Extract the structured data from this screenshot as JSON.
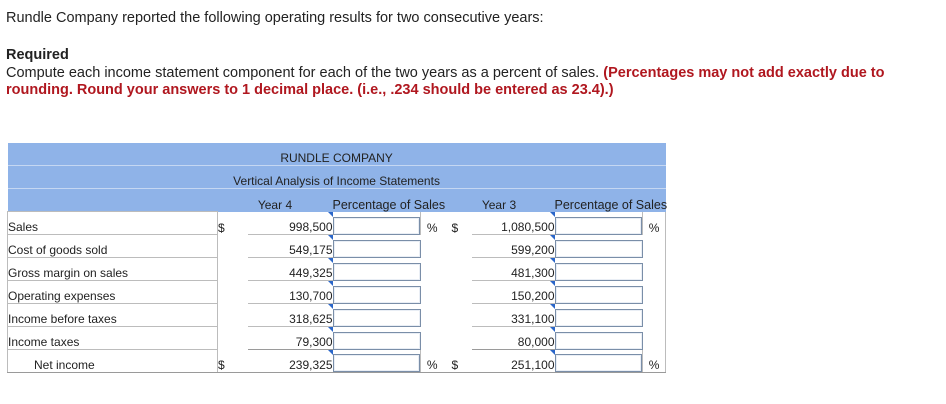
{
  "intro": "Rundle Company reported the following operating results for two consecutive years:",
  "required": {
    "heading": "Required",
    "text_plain": "Compute each income statement component for each of the two years as a percent of sales.",
    "text_emphasis": "(Percentages may not add exactly due to rounding. Round your answers to 1 decimal place. (i.e., .234 should be entered as 23.4).)"
  },
  "table": {
    "company": "RUNDLE COMPANY",
    "subtitle": "Vertical Analysis of Income Statements",
    "col_year4": "Year 4",
    "col_pct4": "Percentage of Sales",
    "col_year3": "Year 3",
    "col_pct3": "Percentage of Sales",
    "dollar_sign": "$",
    "percent_sign": "%",
    "rows": [
      {
        "label": "Sales",
        "year4": "998,500",
        "year3": "1,080,500"
      },
      {
        "label": "Cost of goods sold",
        "year4": "549,175",
        "year3": "599,200"
      },
      {
        "label": "Gross margin on sales",
        "year4": "449,325",
        "year3": "481,300"
      },
      {
        "label": "Operating expenses",
        "year4": "130,700",
        "year3": "150,200"
      },
      {
        "label": "Income before taxes",
        "year4": "318,625",
        "year3": "331,100"
      },
      {
        "label": "Income taxes",
        "year4": "79,300",
        "year3": "80,000"
      },
      {
        "label": "Net income",
        "year4": "239,325",
        "year3": "251,100"
      }
    ]
  },
  "colors": {
    "header_blue": "#8fb3e8",
    "emphasis_red": "#b0171f",
    "input_marker": "#2a66c9"
  }
}
